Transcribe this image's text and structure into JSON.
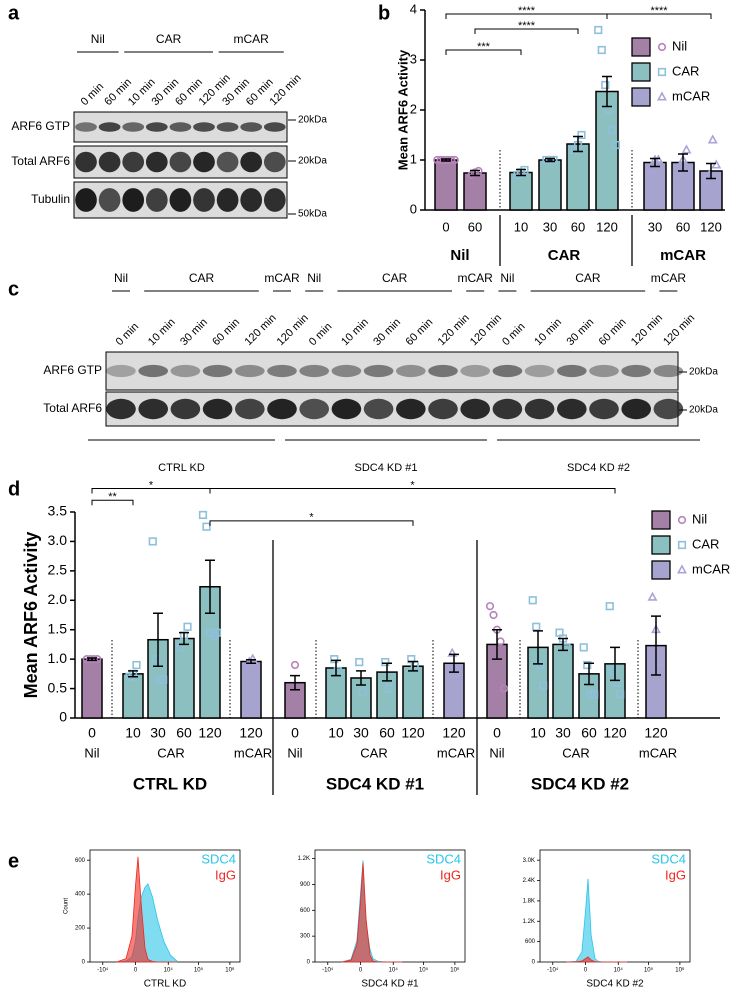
{
  "panel_labels": [
    "a",
    "b",
    "c",
    "d",
    "e"
  ],
  "blot_a": {
    "groups": [
      "Nil",
      "CAR",
      "mCAR"
    ],
    "lanes": [
      "0 min",
      "60 min",
      "10 min",
      "30 min",
      "60 min",
      "120 min",
      "30 min",
      "60 min",
      "120 min"
    ],
    "rows": [
      "ARF6 GTP",
      "Total ARF6",
      "Tubulin"
    ],
    "markers": [
      "20kDa",
      "20kDa",
      "50kDa"
    ]
  },
  "blot_c": {
    "groups": [
      "Nil",
      "CAR",
      "mCAR",
      "Nil",
      "CAR",
      "mCAR",
      "Nil",
      "CAR",
      "mCAR"
    ],
    "lanes": [
      "0 min",
      "10 min",
      "30 min",
      "60 min",
      "120 min",
      "120 min",
      "0 min",
      "10 min",
      "30 min",
      "60 min",
      "120 min",
      "120 min",
      "0 min",
      "10 min",
      "30 min",
      "60 min",
      "120 min",
      "120 min"
    ],
    "rows": [
      "ARF6 GTP",
      "Total ARF6"
    ],
    "markers": [
      "20kDa",
      "20kDa"
    ],
    "conditions": [
      "CTRL KD",
      "SDC4 KD #1",
      "SDC4 KD #2"
    ]
  },
  "chart_data": [
    {
      "type": "bar",
      "ylabel": "Mean ARF6 Activity",
      "categories": [
        "0",
        "60",
        "10",
        "30",
        "60",
        "120",
        "30",
        "60",
        "120"
      ],
      "groups": [
        "Nil",
        "CAR",
        "mCAR"
      ],
      "ylim": [
        0,
        4
      ],
      "yticks": [
        0,
        1,
        2,
        3,
        4
      ],
      "series": [
        {
          "name": "Nil",
          "color": "#a47fa6",
          "point_color": "#b683b8",
          "marker": "circle",
          "values": [
            1.0,
            0.74,
            null,
            null,
            null,
            null,
            null,
            null,
            null
          ],
          "errors": [
            0.02,
            0.05,
            null,
            null,
            null,
            null,
            null,
            null,
            null
          ],
          "points": [
            [
              1,
              1,
              1,
              1,
              1,
              1
            ],
            [
              0.7,
              0.75,
              0.78
            ],
            null,
            null,
            null,
            null,
            null,
            null,
            null
          ]
        },
        {
          "name": "CAR",
          "color": "#8bbfc0",
          "point_color": "#8ec0da",
          "marker": "square",
          "values": [
            null,
            null,
            0.75,
            1.0,
            1.32,
            2.37,
            null,
            null,
            null
          ],
          "errors": [
            null,
            null,
            0.06,
            0.03,
            0.15,
            0.3,
            null,
            null,
            null
          ],
          "points": [
            null,
            null,
            [
              0.7,
              0.75,
              0.8
            ],
            [
              1,
              1,
              1
            ],
            [
              1.2,
              1.3,
              1.5
            ],
            [
              3.6,
              3.2,
              2.5,
              2.0,
              1.6,
              1.3
            ],
            null,
            null,
            null
          ]
        },
        {
          "name": "mCAR",
          "color": "#a7a3cf",
          "point_color": "#a9a4d6",
          "marker": "triangle",
          "values": [
            null,
            null,
            null,
            null,
            null,
            null,
            0.95,
            0.95,
            0.78
          ],
          "errors": [
            null,
            null,
            null,
            null,
            null,
            null,
            0.08,
            0.17,
            0.15
          ],
          "points": [
            null,
            null,
            null,
            null,
            null,
            null,
            [
              0.8,
              1.0,
              1.0
            ],
            [
              0.7,
              1.0,
              1.2
            ],
            [
              0.6,
              0.7,
              1.4,
              0.9
            ]
          ]
        }
      ],
      "significance": [
        {
          "label": "****",
          "from": 0,
          "to": 5,
          "y": 3.92
        },
        {
          "label": "****",
          "from": 5,
          "to": 8,
          "y": 3.92
        },
        {
          "label": "****",
          "from": 1,
          "to": 4,
          "y": 3.62
        },
        {
          "label": "***",
          "from": 0,
          "to": 2,
          "y": 3.2
        }
      ]
    },
    {
      "type": "bar",
      "ylabel": "Mean ARF6 Activity",
      "categories": [
        "0",
        "10",
        "30",
        "60",
        "120",
        "120",
        "0",
        "10",
        "30",
        "60",
        "120",
        "120",
        "0",
        "10",
        "30",
        "60",
        "120",
        "120"
      ],
      "groups": [
        "Nil",
        "CAR",
        "mCAR"
      ],
      "conditions": [
        "CTRL KD",
        "SDC4 KD #1",
        "SDC4 KD #2"
      ],
      "ylim": [
        0,
        3.5
      ],
      "yticks": [
        0,
        0.5,
        {
          "value": 1,
          "label": "1.0"
        },
        1.5,
        {
          "value": 2,
          "label": "2.0"
        },
        2.5,
        {
          "value": 3,
          "label": "3.0"
        },
        3.5
      ],
      "series": [
        {
          "name": "Nil",
          "color": "#a47fa6",
          "point_color": "#b683b8",
          "marker": "circle",
          "values": [
            1.0,
            null,
            null,
            null,
            null,
            null,
            0.6,
            null,
            null,
            null,
            null,
            null,
            1.25,
            null,
            null,
            null,
            null,
            null
          ],
          "errors": [
            0.02,
            null,
            null,
            null,
            null,
            null,
            0.12,
            null,
            null,
            null,
            null,
            null,
            0.25,
            null,
            null,
            null,
            null,
            null
          ],
          "points": [
            [
              1,
              1,
              1,
              1
            ],
            null,
            null,
            null,
            null,
            null,
            [
              0.9
            ],
            null,
            null,
            null,
            null,
            null,
            [
              1.9,
              1.75,
              1.5,
              1.3,
              0.5
            ],
            null,
            null,
            null,
            null,
            null
          ]
        },
        {
          "name": "CAR",
          "color": "#8bbfc0",
          "point_color": "#8ec0da",
          "marker": "square",
          "values": [
            null,
            0.75,
            1.33,
            1.35,
            2.23,
            null,
            null,
            0.85,
            0.68,
            0.78,
            0.88,
            null,
            null,
            1.2,
            1.25,
            0.75,
            0.92,
            null
          ],
          "errors": [
            null,
            0.05,
            0.45,
            0.1,
            0.45,
            null,
            null,
            0.13,
            0.12,
            0.15,
            0.08,
            null,
            null,
            0.28,
            0.1,
            0.18,
            0.28,
            null
          ],
          "points": [
            null,
            [
              0.7,
              0.75,
              0.9
            ],
            [
              3.0,
              1.0,
              0.65,
              0.65
            ],
            [
              1.2,
              1.4,
              1.55
            ],
            [
              3.45,
              3.25,
              1.45,
              1.4,
              1.45
            ],
            null,
            null,
            [
              1.0,
              0.8
            ],
            [
              0.95,
              0.45
            ],
            [
              0.95,
              0.5
            ],
            [
              1.0,
              0.9
            ],
            null,
            null,
            [
              2.0,
              1.55,
              0.9,
              0.55
            ],
            [
              1.45,
              1.35,
              1.2
            ],
            [
              1.2,
              0.9,
              0.4,
              0.4
            ],
            [
              1.9,
              0.8,
              0.6,
              0.4
            ],
            null
          ]
        },
        {
          "name": "mCAR",
          "color": "#a7a3cf",
          "point_color": "#a9a4d6",
          "marker": "triangle",
          "values": [
            null,
            null,
            null,
            null,
            null,
            0.96,
            null,
            null,
            null,
            null,
            null,
            0.93,
            null,
            null,
            null,
            null,
            null,
            1.23
          ],
          "errors": [
            null,
            null,
            null,
            null,
            null,
            0.03,
            null,
            null,
            null,
            null,
            null,
            0.15,
            null,
            null,
            null,
            null,
            null,
            0.5
          ],
          "points": [
            null,
            null,
            null,
            null,
            null,
            [
              0.95,
              1.0
            ],
            null,
            null,
            null,
            null,
            null,
            [
              1.1,
              0.75
            ],
            null,
            null,
            null,
            null,
            null,
            [
              2.05,
              1.5,
              0.95
            ]
          ]
        }
      ],
      "significance": [
        {
          "label": "**",
          "from": 0,
          "to": 1,
          "y": 3.7
        },
        {
          "label": "*",
          "from": 0,
          "to": 4,
          "y": 3.9
        },
        {
          "label": "*",
          "from": 4,
          "to": 16,
          "y": 3.9
        },
        {
          "label": "*",
          "from": 4,
          "to": 10,
          "y": 3.35
        }
      ]
    },
    {
      "type": "area",
      "xlabel": "CTRL KD",
      "ylabel": "Count",
      "xscale": "symlog",
      "linthresh": 1000,
      "x": [
        -3000,
        -1000,
        -300,
        0,
        200,
        500,
        1000,
        1500,
        2500,
        4000,
        7000,
        12000,
        20000
      ],
      "xlim": [
        -27000,
        2100000
      ],
      "xticks": [
        {
          "value": -10000,
          "label": "-10⁴"
        },
        0,
        {
          "value": 10000,
          "label": "10⁴"
        },
        {
          "value": 100000,
          "label": "10⁵"
        },
        {
          "value": 1000000,
          "label": "10⁶"
        }
      ],
      "ylim": [
        0,
        660
      ],
      "yticks": [
        0,
        200,
        400,
        600
      ],
      "series": [
        {
          "name": "SDC4",
          "color": "#29c5e8",
          "values": [
            0,
            5,
            30,
            120,
            260,
            380,
            440,
            460,
            380,
            250,
            120,
            40,
            5
          ]
        },
        {
          "name": "IgG",
          "color": "#f0271e",
          "values": [
            0,
            20,
            150,
            450,
            620,
            350,
            80,
            15,
            3,
            0,
            0,
            0,
            0
          ]
        }
      ]
    },
    {
      "type": "area",
      "xlabel": "SDC4 KD #1",
      "xscale": "symlog",
      "linthresh": 1000,
      "x": [
        -3000,
        -1000,
        -300,
        0,
        200,
        500,
        1000,
        1500,
        2500,
        4000,
        7000,
        12000,
        20000
      ],
      "xlim": [
        -27000,
        2100000
      ],
      "xticks": [
        {
          "value": -10000,
          "label": "-10⁴"
        },
        0,
        {
          "value": 10000,
          "label": "10⁴"
        },
        {
          "value": 100000,
          "label": "10⁵"
        },
        {
          "value": 1000000,
          "label": "10⁶"
        }
      ],
      "ylim": [
        0,
        1300
      ],
      "yticks": [
        0,
        300,
        600,
        900,
        {
          "value": 1200,
          "label": "1.2K"
        }
      ],
      "series": [
        {
          "name": "SDC4",
          "color": "#29c5e8",
          "values": [
            0,
            30,
            250,
            800,
            1180,
            450,
            150,
            40,
            10,
            3,
            0,
            0,
            0
          ]
        },
        {
          "name": "IgG",
          "color": "#f0271e",
          "values": [
            0,
            20,
            200,
            700,
            1150,
            500,
            80,
            10,
            0,
            0,
            0,
            0,
            0
          ]
        }
      ]
    },
    {
      "type": "area",
      "xlabel": "SDC4 KD #2",
      "xscale": "symlog",
      "linthresh": 1000,
      "x": [
        -3000,
        -1000,
        -300,
        0,
        200,
        500,
        1000,
        1500,
        2500,
        4000,
        7000,
        12000,
        20000
      ],
      "xlim": [
        -27000,
        2100000
      ],
      "xticks": [
        {
          "value": -10000,
          "label": "-10⁴"
        },
        0,
        {
          "value": 10000,
          "label": "10⁴"
        },
        {
          "value": 100000,
          "label": "10⁵"
        },
        {
          "value": 1000000,
          "label": "10⁶"
        }
      ],
      "ylim": [
        0,
        3300
      ],
      "yticks": [
        0,
        600,
        {
          "value": 1200,
          "label": "1.2K"
        },
        {
          "value": 1800,
          "label": "1.8K"
        },
        {
          "value": 2400,
          "label": "2.4K"
        },
        {
          "value": 3000,
          "label": "3.0K"
        }
      ],
      "series": [
        {
          "name": "SDC4",
          "color": "#29c5e8",
          "values": [
            0,
            20,
            300,
            1500,
            2450,
            800,
            100,
            20,
            3,
            0,
            0,
            0,
            0
          ]
        },
        {
          "name": "IgG",
          "color": "#f0271e",
          "values": [
            0,
            5,
            30,
            100,
            150,
            60,
            10,
            0,
            0,
            0,
            0,
            0,
            0
          ]
        }
      ]
    }
  ]
}
